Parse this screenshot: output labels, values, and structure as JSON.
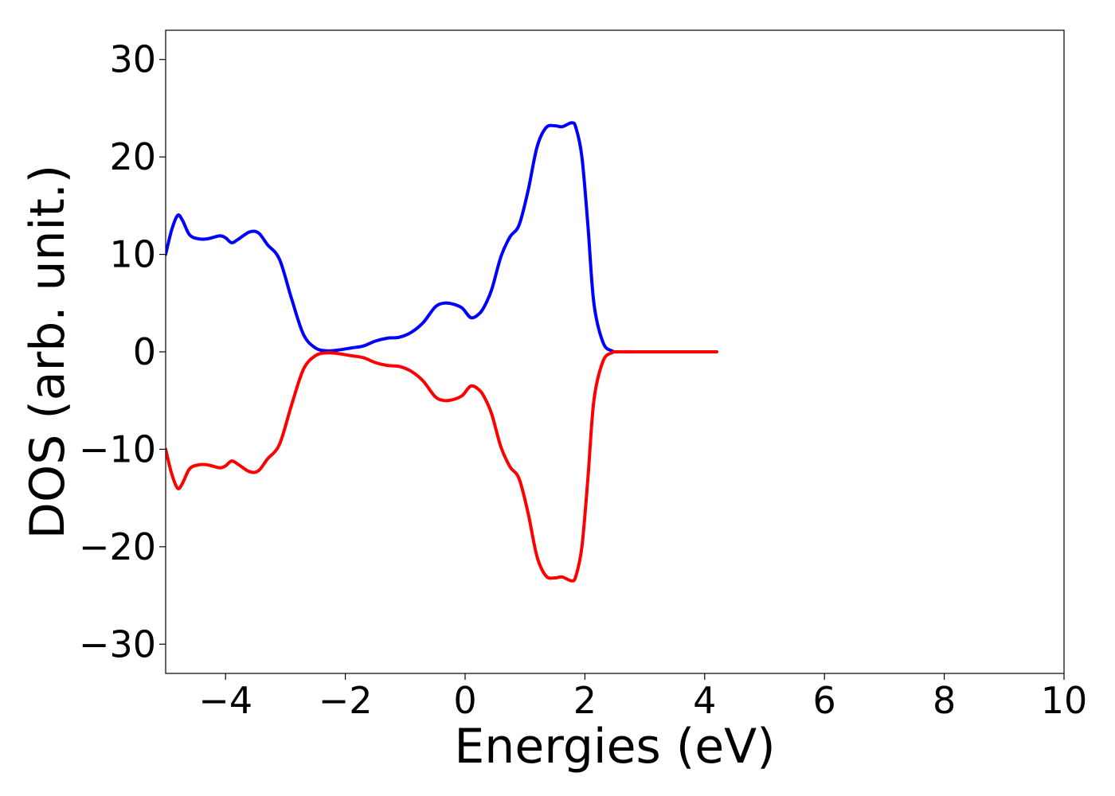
{
  "chart_data": {
    "type": "line",
    "title": "",
    "xlabel": "Energies (eV)",
    "ylabel": "DOS (arb. unit.)",
    "xlim": [
      -5,
      10
    ],
    "ylim": [
      -33,
      33
    ],
    "xticks": [
      -4,
      -2,
      0,
      2,
      4,
      6,
      8,
      10
    ],
    "yticks": [
      -30,
      -20,
      -10,
      0,
      10,
      20,
      30
    ],
    "grid": false,
    "legend": "none",
    "series": [
      {
        "color": "#0000ff",
        "x": [
          -5.0,
          -4.9,
          -4.8,
          -4.72,
          -4.6,
          -4.45,
          -4.3,
          -4.1,
          -4.0,
          -3.9,
          -3.8,
          -3.6,
          -3.45,
          -3.3,
          -3.1,
          -2.9,
          -2.7,
          -2.5,
          -2.3,
          -2.1,
          -1.9,
          -1.7,
          -1.5,
          -1.3,
          -1.1,
          -0.9,
          -0.7,
          -0.5,
          -0.35,
          -0.2,
          -0.05,
          0.1,
          0.25,
          0.35,
          0.45,
          0.6,
          0.75,
          0.9,
          1.05,
          1.2,
          1.35,
          1.5,
          1.62,
          1.78,
          1.85,
          1.95,
          2.05,
          2.15,
          2.3,
          2.45,
          2.6,
          3.0,
          3.5,
          4.0,
          4.2
        ],
        "y": [
          10.0,
          12.5,
          14.0,
          13.5,
          12.0,
          11.6,
          11.6,
          11.9,
          11.7,
          11.2,
          11.5,
          12.3,
          12.2,
          11.0,
          9.5,
          5.5,
          1.8,
          0.4,
          0.1,
          0.2,
          0.4,
          0.6,
          1.1,
          1.4,
          1.5,
          2.0,
          3.0,
          4.6,
          5.0,
          4.9,
          4.5,
          3.5,
          4.0,
          5.0,
          6.5,
          9.8,
          11.8,
          13.0,
          16.5,
          21.0,
          23.0,
          23.2,
          23.1,
          23.5,
          23.0,
          20.0,
          13.0,
          5.0,
          1.0,
          0.1,
          0.0,
          0.0,
          0.0,
          0.0,
          0.0
        ]
      },
      {
        "color": "#ff0000",
        "x": [
          -5.0,
          -4.9,
          -4.8,
          -4.72,
          -4.6,
          -4.45,
          -4.3,
          -4.1,
          -4.0,
          -3.9,
          -3.8,
          -3.6,
          -3.45,
          -3.3,
          -3.1,
          -2.9,
          -2.7,
          -2.5,
          -2.3,
          -2.1,
          -1.9,
          -1.7,
          -1.5,
          -1.3,
          -1.1,
          -0.9,
          -0.7,
          -0.5,
          -0.35,
          -0.2,
          -0.05,
          0.1,
          0.25,
          0.35,
          0.45,
          0.6,
          0.75,
          0.9,
          1.05,
          1.2,
          1.35,
          1.5,
          1.62,
          1.78,
          1.85,
          1.95,
          2.05,
          2.15,
          2.3,
          2.45,
          2.6,
          3.0,
          3.5,
          4.0,
          4.2
        ],
        "y": [
          -10.0,
          -12.5,
          -14.0,
          -13.5,
          -12.0,
          -11.6,
          -11.6,
          -11.9,
          -11.7,
          -11.2,
          -11.5,
          -12.3,
          -12.2,
          -11.0,
          -9.5,
          -5.5,
          -1.8,
          -0.4,
          -0.1,
          -0.2,
          -0.4,
          -0.6,
          -1.1,
          -1.4,
          -1.5,
          -2.0,
          -3.0,
          -4.6,
          -5.0,
          -4.9,
          -4.5,
          -3.5,
          -4.0,
          -5.0,
          -6.5,
          -9.8,
          -11.8,
          -13.0,
          -16.5,
          -21.0,
          -23.0,
          -23.2,
          -23.1,
          -23.5,
          -23.0,
          -20.0,
          -13.0,
          -5.0,
          -1.0,
          -0.1,
          0.0,
          0.0,
          0.0,
          0.0,
          0.0
        ]
      }
    ]
  }
}
